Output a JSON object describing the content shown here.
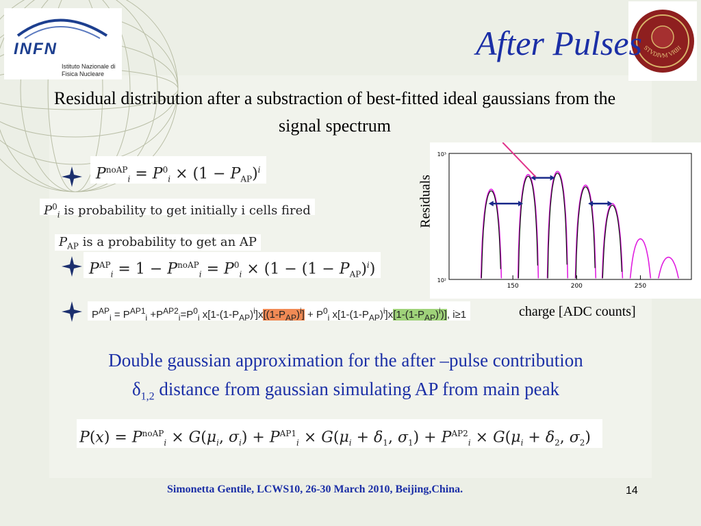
{
  "header": {
    "title": "After Pulses",
    "logo_text": "INFN",
    "logo_sub": "Istituto Nazionale di Fisica Nucleare",
    "seal_text": "STVDIVM VRBIS"
  },
  "subtitle": "Residual distribution after a substraction of best-fitted ideal gaussians from the signal spectrum",
  "notes": {
    "p0": "is probability to get initially i cells fired",
    "pap": "is a probability to get an AP"
  },
  "paragraph": {
    "line1": "Double gaussian approximation for the after –pulse contribution",
    "delta_symbol": "δ",
    "delta_sub": "1,2",
    "line2": "distance from  gaussian simulating AP from main peak"
  },
  "chart_data": {
    "type": "line",
    "xlabel": "charge [ADC counts]",
    "ylabel": "Residuals",
    "x_ticks": [
      "150",
      "200",
      "250"
    ],
    "y_ticks": [
      "10³",
      "10²"
    ],
    "xlim": [
      100,
      290
    ],
    "y_scale": "log",
    "ylim": [
      100,
      1000
    ],
    "colors": {
      "data": "#e01ee0",
      "fit": "#111111",
      "arrow": "#1a2a8a",
      "pointer": "#e0338a"
    },
    "peaks": [
      {
        "center": 133,
        "height": 520,
        "fitted": true
      },
      {
        "center": 162,
        "height": 680,
        "fitted": true
      },
      {
        "center": 185,
        "height": 720,
        "fitted": true
      },
      {
        "center": 207,
        "height": 560,
        "fitted": true
      },
      {
        "center": 228,
        "height": 400,
        "fitted": true
      },
      {
        "center": 250,
        "height": 210,
        "fitted": false
      },
      {
        "center": 272,
        "height": 150,
        "fitted": false
      }
    ]
  },
  "footer": {
    "credit": "Simonetta Gentile,  LCWS10, 26-30 March 2010, Beijing,China.",
    "page_number": "14"
  }
}
